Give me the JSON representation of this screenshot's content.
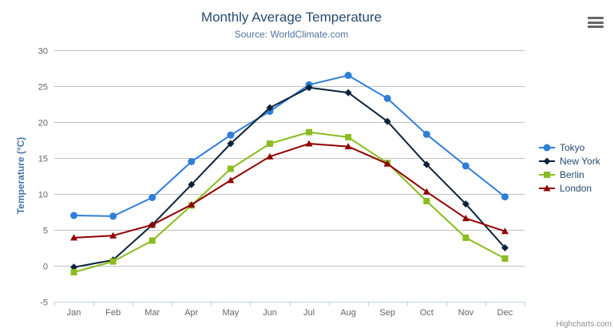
{
  "header": {
    "title": "Monthly Average Temperature",
    "subtitle": "Source: WorldClimate.com"
  },
  "credits": "Highcharts.com",
  "colors": {
    "title": "#274b6d",
    "subtitle": "#4d759e",
    "axis_title": "#4572a7",
    "tick_label": "#666666",
    "gridline": "#c0c0c0",
    "axis_line": "#c0d0e0",
    "legend_text": "#274b6d",
    "menu_icon": "#666666"
  },
  "chart_data": {
    "type": "line",
    "title": "Monthly Average Temperature",
    "subtitle": "Source: WorldClimate.com",
    "xlabel": "",
    "ylabel": "Temperature (°C)",
    "ylim": [
      -5,
      30
    ],
    "ytick_step": 5,
    "grid": true,
    "legend_position": "right",
    "categories": [
      "Jan",
      "Feb",
      "Mar",
      "Apr",
      "May",
      "Jun",
      "Jul",
      "Aug",
      "Sep",
      "Oct",
      "Nov",
      "Dec"
    ],
    "series": [
      {
        "name": "Tokyo",
        "color": "#2f7ed8",
        "marker": "circle",
        "values": [
          7.0,
          6.9,
          9.5,
          14.5,
          18.2,
          21.5,
          25.2,
          26.5,
          23.3,
          18.3,
          13.9,
          9.6
        ]
      },
      {
        "name": "New York",
        "color": "#0d233a",
        "marker": "diamond",
        "values": [
          -0.2,
          0.8,
          5.7,
          11.3,
          17.0,
          22.0,
          24.8,
          24.1,
          20.1,
          14.1,
          8.6,
          2.5
        ]
      },
      {
        "name": "Berlin",
        "color": "#8bbc21",
        "marker": "square",
        "values": [
          -0.9,
          0.6,
          3.5,
          8.4,
          13.5,
          17.0,
          18.6,
          17.9,
          14.3,
          9.0,
          3.9,
          1.0
        ]
      },
      {
        "name": "London",
        "color": "#910000",
        "marker": "triangle",
        "values": [
          3.9,
          4.2,
          5.7,
          8.5,
          11.9,
          15.2,
          17.0,
          16.6,
          14.2,
          10.3,
          6.6,
          4.8
        ]
      }
    ]
  }
}
